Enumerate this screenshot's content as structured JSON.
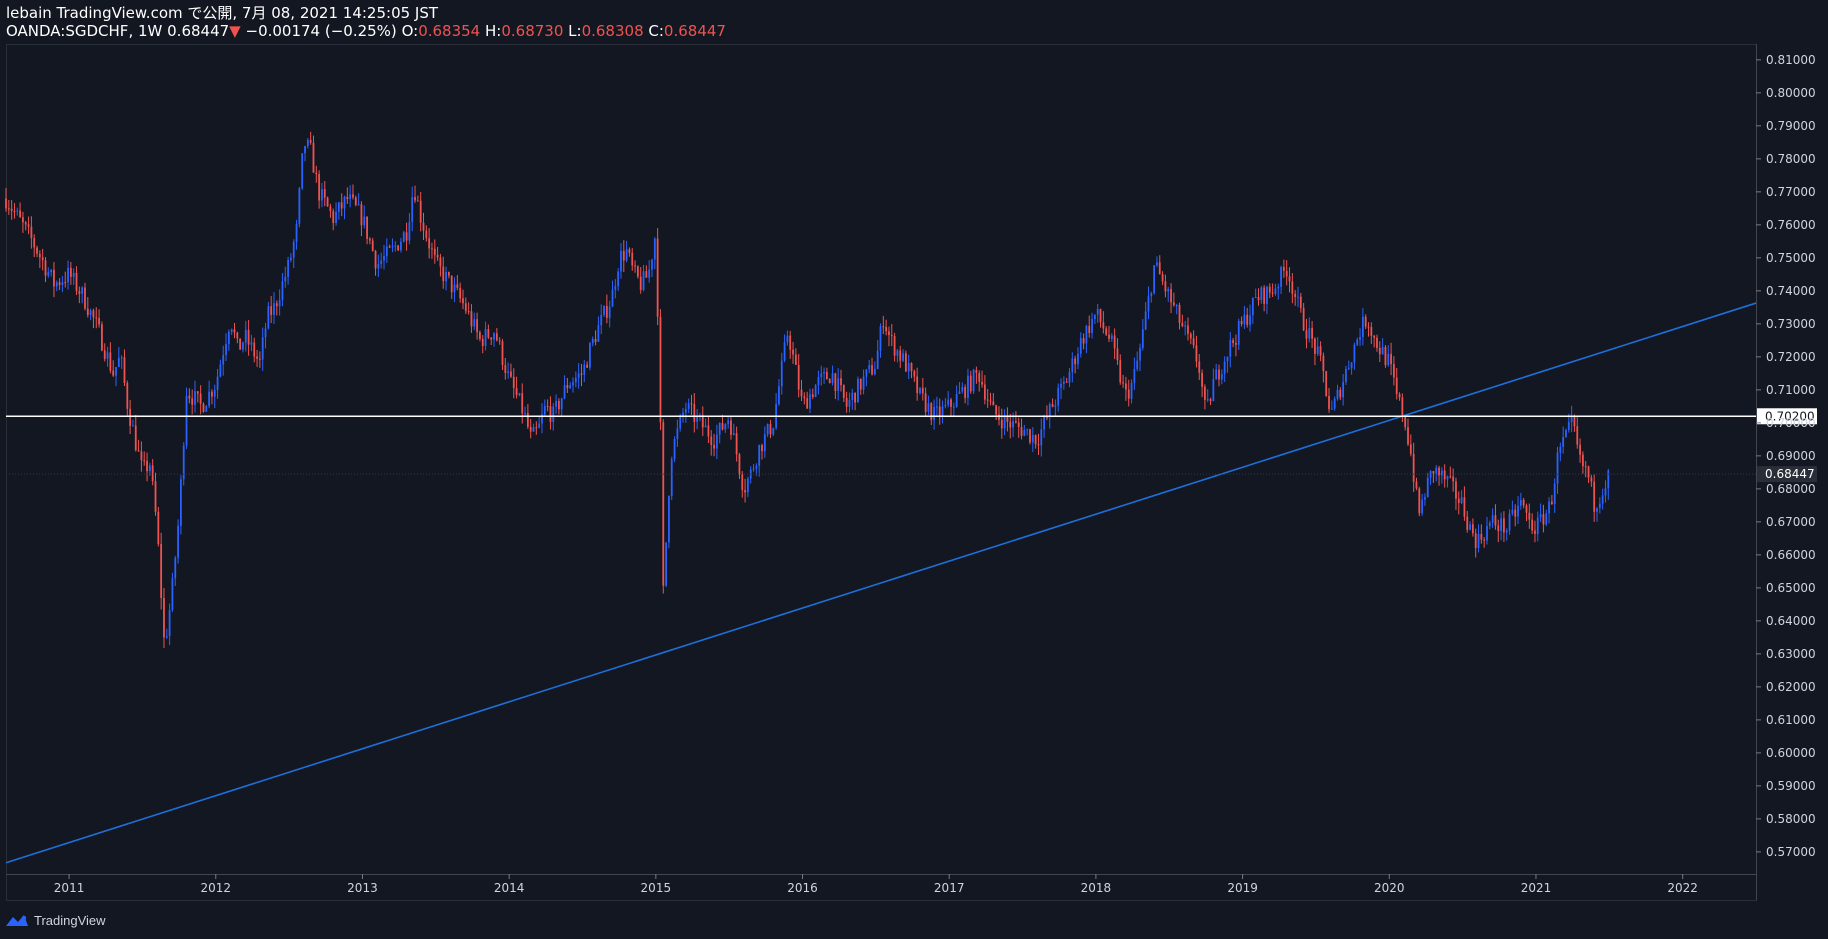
{
  "header": {
    "line1": "lebain TradingView.com で公開, 7月 08, 2021 14:25:05 JST",
    "symbol": "OANDA:SGDCHF, 1W",
    "last": "0.68447",
    "change": "−0.00174 (−0.25%)",
    "o_label": "O:",
    "o_value": "0.68354",
    "h_label": "H:",
    "h_value": "0.68730",
    "l_label": "L:",
    "l_value": "0.68308",
    "c_label": "C:",
    "c_value": "0.68447"
  },
  "footer": {
    "brand": "TradingView"
  },
  "colors": {
    "background": "#131722",
    "up": "#2962ff",
    "down": "#ef5350",
    "trendline": "#1e6fd9",
    "hline": "#ffffff",
    "text": "#d1d4dc"
  },
  "chart_data": {
    "type": "candlestick",
    "symbol": "OANDA:SGDCHF",
    "interval": "1W",
    "xlim": [
      2010.57,
      2022.5
    ],
    "ylim": [
      0.5633,
      0.8148
    ],
    "x_ticks": [
      "2011",
      "2012",
      "2013",
      "2014",
      "2015",
      "2016",
      "2017",
      "2018",
      "2019",
      "2020",
      "2021",
      "2022"
    ],
    "y_ticks": [
      "0.57000",
      "0.58000",
      "0.59000",
      "0.60000",
      "0.61000",
      "0.62000",
      "0.63000",
      "0.64000",
      "0.65000",
      "0.66000",
      "0.67000",
      "0.68000",
      "0.69000",
      "0.70000",
      "0.71000",
      "0.72000",
      "0.73000",
      "0.74000",
      "0.75000",
      "0.76000",
      "0.77000",
      "0.78000",
      "0.79000",
      "0.80000",
      "0.81000"
    ],
    "horizontal_line": {
      "value": 0.702,
      "label": "0.70200"
    },
    "last_price_label": "0.68447",
    "last_price": 0.68447,
    "trendline": {
      "points": [
        [
          2010.57,
          0.5667
        ],
        [
          2022.5,
          0.7363
        ]
      ]
    },
    "close_path": [
      [
        2010.57,
        0.768
      ],
      [
        2010.75,
        0.755
      ],
      [
        2010.9,
        0.742
      ],
      [
        2011.0,
        0.745
      ],
      [
        2011.1,
        0.738
      ],
      [
        2011.2,
        0.728
      ],
      [
        2011.3,
        0.715
      ],
      [
        2011.35,
        0.72
      ],
      [
        2011.4,
        0.705
      ],
      [
        2011.45,
        0.695
      ],
      [
        2011.5,
        0.685
      ],
      [
        2011.55,
        0.688
      ],
      [
        2011.6,
        0.668
      ],
      [
        2011.65,
        0.632
      ],
      [
        2011.7,
        0.648
      ],
      [
        2011.75,
        0.672
      ],
      [
        2011.8,
        0.71
      ],
      [
        2011.9,
        0.705
      ],
      [
        2012.0,
        0.712
      ],
      [
        2012.1,
        0.732
      ],
      [
        2012.15,
        0.722
      ],
      [
        2012.2,
        0.726
      ],
      [
        2012.3,
        0.718
      ],
      [
        2012.35,
        0.732
      ],
      [
        2012.4,
        0.735
      ],
      [
        2012.5,
        0.748
      ],
      [
        2012.55,
        0.758
      ],
      [
        2012.6,
        0.785
      ],
      [
        2012.65,
        0.782
      ],
      [
        2012.7,
        0.77
      ],
      [
        2012.8,
        0.762
      ],
      [
        2012.9,
        0.768
      ],
      [
        2013.0,
        0.762
      ],
      [
        2013.1,
        0.748
      ],
      [
        2013.2,
        0.752
      ],
      [
        2013.3,
        0.758
      ],
      [
        2013.35,
        0.772
      ],
      [
        2013.4,
        0.762
      ],
      [
        2013.5,
        0.748
      ],
      [
        2013.6,
        0.742
      ],
      [
        2013.7,
        0.735
      ],
      [
        2013.8,
        0.725
      ],
      [
        2013.9,
        0.728
      ],
      [
        2014.0,
        0.713
      ],
      [
        2014.1,
        0.703
      ],
      [
        2014.15,
        0.695
      ],
      [
        2014.2,
        0.698
      ],
      [
        2014.25,
        0.705
      ],
      [
        2014.3,
        0.702
      ],
      [
        2014.4,
        0.712
      ],
      [
        2014.5,
        0.715
      ],
      [
        2014.55,
        0.722
      ],
      [
        2014.6,
        0.728
      ],
      [
        2014.7,
        0.738
      ],
      [
        2014.75,
        0.75
      ],
      [
        2014.8,
        0.752
      ],
      [
        2014.85,
        0.745
      ],
      [
        2014.9,
        0.742
      ],
      [
        2014.95,
        0.745
      ],
      [
        2015.0,
        0.758
      ],
      [
        2015.03,
        0.702
      ],
      [
        2015.05,
        0.648
      ],
      [
        2015.08,
        0.672
      ],
      [
        2015.1,
        0.69
      ],
      [
        2015.2,
        0.705
      ],
      [
        2015.3,
        0.7
      ],
      [
        2015.4,
        0.695
      ],
      [
        2015.5,
        0.702
      ],
      [
        2015.6,
        0.68
      ],
      [
        2015.65,
        0.685
      ],
      [
        2015.7,
        0.692
      ],
      [
        2015.8,
        0.7
      ],
      [
        2015.9,
        0.728
      ],
      [
        2016.0,
        0.705
      ],
      [
        2016.1,
        0.712
      ],
      [
        2016.2,
        0.715
      ],
      [
        2016.3,
        0.705
      ],
      [
        2016.4,
        0.712
      ],
      [
        2016.5,
        0.718
      ],
      [
        2016.55,
        0.732
      ],
      [
        2016.6,
        0.725
      ],
      [
        2016.7,
        0.718
      ],
      [
        2016.8,
        0.708
      ],
      [
        2016.9,
        0.702
      ],
      [
        2017.0,
        0.705
      ],
      [
        2017.1,
        0.71
      ],
      [
        2017.2,
        0.715
      ],
      [
        2017.3,
        0.703
      ],
      [
        2017.4,
        0.7
      ],
      [
        2017.5,
        0.698
      ],
      [
        2017.6,
        0.695
      ],
      [
        2017.7,
        0.705
      ],
      [
        2017.8,
        0.713
      ],
      [
        2017.9,
        0.725
      ],
      [
        2018.0,
        0.733
      ],
      [
        2018.1,
        0.725
      ],
      [
        2018.2,
        0.708
      ],
      [
        2018.25,
        0.712
      ],
      [
        2018.3,
        0.722
      ],
      [
        2018.4,
        0.748
      ],
      [
        2018.5,
        0.738
      ],
      [
        2018.6,
        0.728
      ],
      [
        2018.7,
        0.718
      ],
      [
        2018.75,
        0.702
      ],
      [
        2018.8,
        0.712
      ],
      [
        2018.9,
        0.722
      ],
      [
        2019.0,
        0.73
      ],
      [
        2019.1,
        0.738
      ],
      [
        2019.2,
        0.74
      ],
      [
        2019.3,
        0.747
      ],
      [
        2019.35,
        0.74
      ],
      [
        2019.4,
        0.732
      ],
      [
        2019.5,
        0.722
      ],
      [
        2019.55,
        0.715
      ],
      [
        2019.6,
        0.702
      ],
      [
        2019.7,
        0.715
      ],
      [
        2019.8,
        0.728
      ],
      [
        2019.85,
        0.732
      ],
      [
        2019.9,
        0.725
      ],
      [
        2020.0,
        0.718
      ],
      [
        2020.05,
        0.708
      ],
      [
        2020.1,
        0.702
      ],
      [
        2020.15,
        0.69
      ],
      [
        2020.2,
        0.672
      ],
      [
        2020.25,
        0.68
      ],
      [
        2020.3,
        0.686
      ],
      [
        2020.4,
        0.682
      ],
      [
        2020.5,
        0.675
      ],
      [
        2020.55,
        0.668
      ],
      [
        2020.6,
        0.664
      ],
      [
        2020.7,
        0.67
      ],
      [
        2020.8,
        0.668
      ],
      [
        2020.9,
        0.676
      ],
      [
        2020.95,
        0.67
      ],
      [
        2021.0,
        0.668
      ],
      [
        2021.1,
        0.675
      ],
      [
        2021.15,
        0.69
      ],
      [
        2021.2,
        0.695
      ],
      [
        2021.25,
        0.7
      ],
      [
        2021.3,
        0.688
      ],
      [
        2021.35,
        0.685
      ],
      [
        2021.4,
        0.675
      ],
      [
        2021.45,
        0.68
      ],
      [
        2021.5,
        0.684
      ]
    ]
  }
}
